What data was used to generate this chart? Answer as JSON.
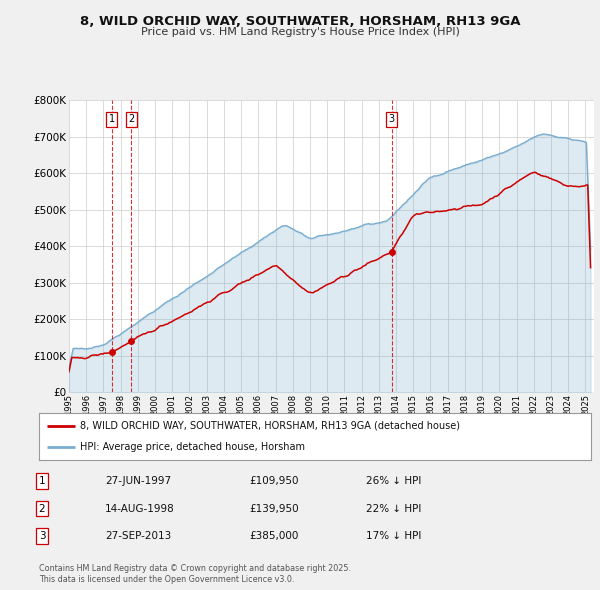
{
  "title": "8, WILD ORCHID WAY, SOUTHWATER, HORSHAM, RH13 9GA",
  "subtitle": "Price paid vs. HM Land Registry's House Price Index (HPI)",
  "legend_line1": "8, WILD ORCHID WAY, SOUTHWATER, HORSHAM, RH13 9GA (detached house)",
  "legend_line2": "HPI: Average price, detached house, Horsham",
  "sale_color": "#cc0000",
  "hpi_color": "#7aadcf",
  "ylabel": "£",
  "ylim": [
    0,
    800000
  ],
  "yticks": [
    0,
    100000,
    200000,
    300000,
    400000,
    500000,
    600000,
    700000,
    800000
  ],
  "ytick_labels": [
    "£0",
    "£100K",
    "£200K",
    "£300K",
    "£400K",
    "£500K",
    "£600K",
    "£700K",
    "£800K"
  ],
  "xmin": 1995.0,
  "xmax": 2025.5,
  "transactions": [
    {
      "num": 1,
      "date_str": "27-JUN-1997",
      "year": 1997.49,
      "price": 109950,
      "pct": "26%"
    },
    {
      "num": 2,
      "date_str": "14-AUG-1998",
      "year": 1998.62,
      "price": 139950,
      "pct": "22%"
    },
    {
      "num": 3,
      "date_str": "27-SEP-2013",
      "year": 2013.74,
      "price": 385000,
      "pct": "17%"
    }
  ],
  "footer_line1": "Contains HM Land Registry data © Crown copyright and database right 2025.",
  "footer_line2": "This data is licensed under the Open Government Licence v3.0.",
  "background_color": "#f0f0f0",
  "plot_bg_color": "#ffffff",
  "grid_color": "#cccccc"
}
